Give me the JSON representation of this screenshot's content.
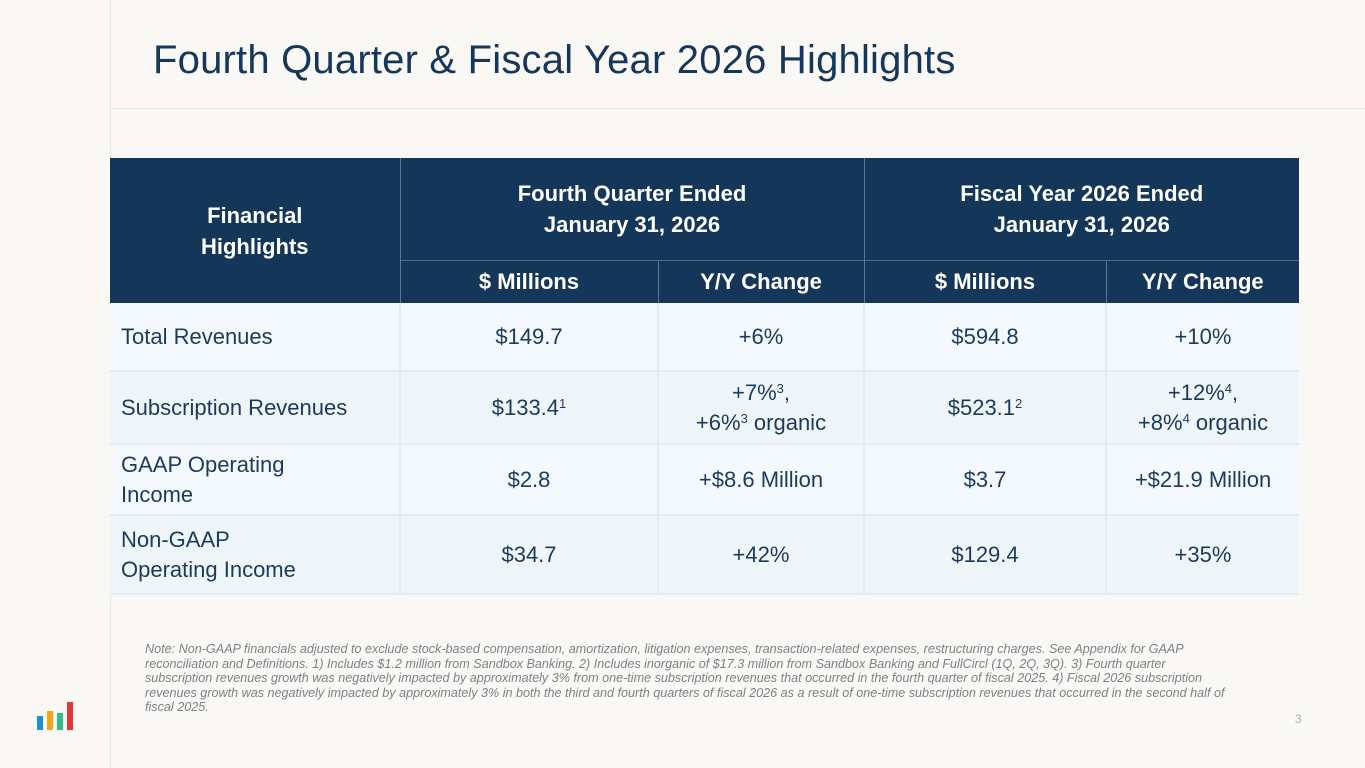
{
  "title": "Fourth Quarter & Fiscal Year 2026 Highlights",
  "table": {
    "corner_header": [
      "Financial",
      "Highlights"
    ],
    "period_headers": [
      {
        "line1": "Fourth Quarter Ended",
        "line2": "January 31, 2026"
      },
      {
        "line1": "Fiscal Year 2026 Ended",
        "line2": "January 31, 2026"
      }
    ],
    "sub_headers": [
      "$ Millions",
      "Y/Y Change",
      "$ Millions",
      "Y/Y Change"
    ],
    "rows": [
      {
        "label": [
          "Total Revenues"
        ],
        "q_value": "$149.7",
        "q_change": "+6%",
        "fy_value": "$594.8",
        "fy_change": "+10%"
      },
      {
        "label": [
          "Subscription Revenues"
        ],
        "q_value": "$133.4",
        "q_value_sup": "1",
        "q_change_a": "+7%",
        "q_change_a_sup": "3",
        "q_change_a_tail": ",",
        "q_change_b": "+6%",
        "q_change_b_sup": "3",
        "q_change_b_tail": " organic",
        "fy_value": "$523.1",
        "fy_value_sup": "2",
        "fy_change_a": "+12%",
        "fy_change_a_sup": "4",
        "fy_change_a_tail": ",",
        "fy_change_b": "+8%",
        "fy_change_b_sup": "4",
        "fy_change_b_tail": " organic"
      },
      {
        "label": [
          "GAAP Operating",
          "Income"
        ],
        "q_value": "$2.8",
        "q_change": "+$8.6 Million",
        "fy_value": "$3.7",
        "fy_change": "+$21.9 Million"
      },
      {
        "label": [
          "Non-GAAP",
          "Operating Income"
        ],
        "q_value": "$34.7",
        "q_change": "+42%",
        "fy_value": "$129.4",
        "fy_change": "+35%"
      }
    ]
  },
  "note": "Note: Non-GAAP financials adjusted to exclude stock-based compensation, amortization, litigation expenses, transaction-related expenses, restructuring charges. See Appendix for GAAP reconciliation and Definitions. 1) Includes $1.2 million from Sandbox Banking.  2) Includes inorganic of  $17.3 million from Sandbox Banking and FullCircl (1Q, 2Q, 3Q). 3) Fourth quarter subscription revenues growth was negatively impacted by approximately 3% from one-time subscription revenues that occurred in the fourth quarter of fiscal 2025.  4) Fiscal 2026 subscription revenues growth was negatively impacted by approximately 3% in both the third and fourth quarters of fiscal 2026 as a result of one-time subscription revenues that occurred in the second half of fiscal 2025.",
  "page_number": "3",
  "logo": {
    "icon": "bar-chart-logo-icon",
    "colors": [
      "#1f8fd1",
      "#f2a81d",
      "#2dbf84",
      "#e03a3a"
    ]
  }
}
